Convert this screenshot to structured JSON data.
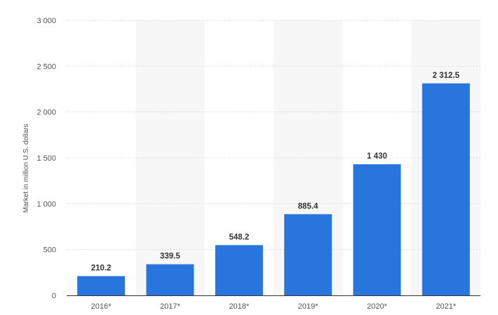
{
  "chart_data": {
    "type": "bar",
    "title": "",
    "xlabel": "",
    "ylabel": "Market in million U.S. dollars",
    "categories": [
      "2016*",
      "2017*",
      "2018*",
      "2019*",
      "2020*",
      "2021*"
    ],
    "values": [
      210.2,
      339.5,
      548.2,
      885.4,
      1430,
      2312.5
    ],
    "value_labels": [
      "210.2",
      "339.5",
      "548.2",
      "885.4",
      "1 430",
      "2 312.5"
    ],
    "ylim": [
      0,
      3000
    ],
    "yticks": [
      0,
      500,
      1000,
      1500,
      2000,
      2500,
      3000
    ],
    "ytick_labels": [
      "0",
      "500",
      "1 000",
      "1 500",
      "2 000",
      "2 500",
      "3 000"
    ],
    "grid": true,
    "legend": "none",
    "colors": {
      "bar": "#2876dd",
      "band": "#f7f7f7",
      "grid": "#d0d0d0",
      "axis": "#333333"
    }
  }
}
